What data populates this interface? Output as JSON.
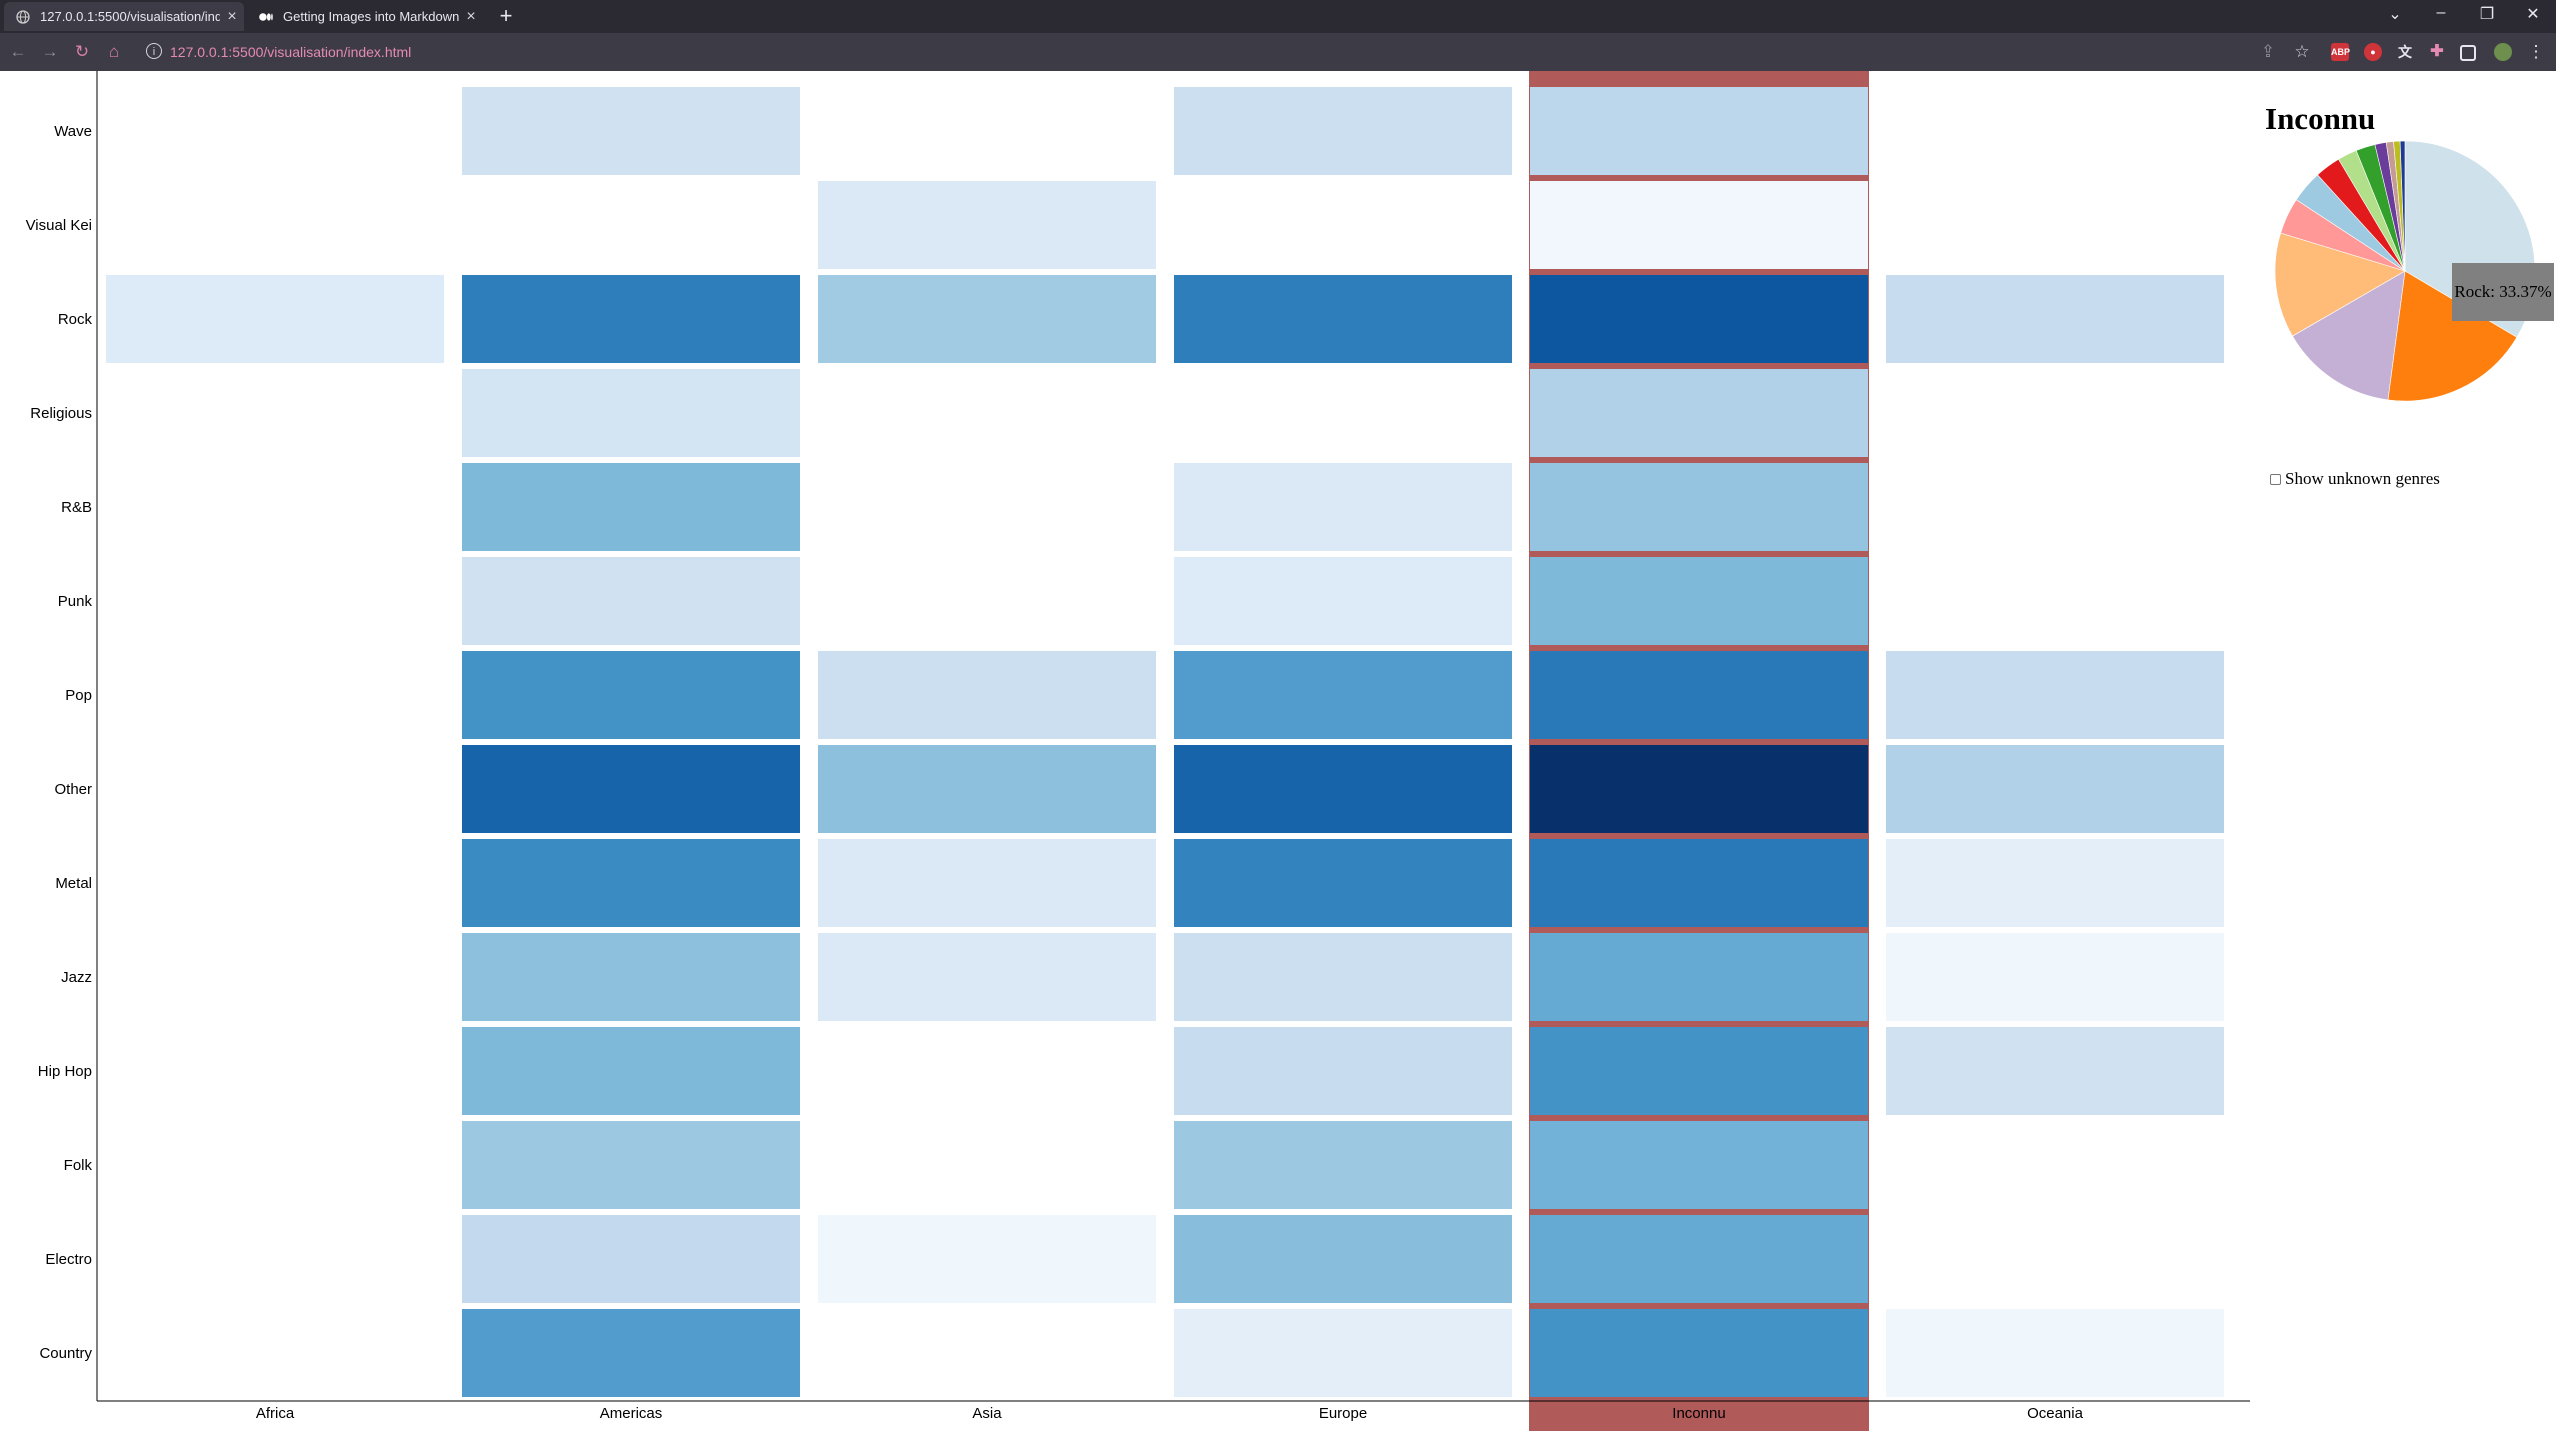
{
  "browser": {
    "tabs": [
      {
        "title": "127.0.0.1:5500/visualisation/index.html",
        "active": true,
        "icon": "globe-icon"
      },
      {
        "title": "Getting Images into Markdown Documents",
        "active": false,
        "icon": "medium-logo-icon"
      }
    ],
    "new_tab_label": "+",
    "url": "127.0.0.1:5500/visualisation/index.html"
  },
  "heatmap": {
    "columns": [
      "Africa",
      "Americas",
      "Asia",
      "Europe",
      "Inconnu",
      "Oceania"
    ],
    "rows": [
      "Wave",
      "Visual Kei",
      "Rock",
      "Religious",
      "R&B",
      "Punk",
      "Pop",
      "Other",
      "Metal",
      "Jazz",
      "Hip Hop",
      "Folk",
      "Electro",
      "Country"
    ],
    "selected_column": "Inconnu",
    "highlight_color": "#b05a5a",
    "cells": {
      "Africa": [
        null,
        null,
        0.13,
        null,
        null,
        null,
        null,
        null,
        null,
        null,
        null,
        null,
        null,
        null
      ],
      "Americas": [
        0.2,
        null,
        0.7,
        0.18,
        0.45,
        0.2,
        0.62,
        0.8,
        0.65,
        0.42,
        0.45,
        0.38,
        0.26,
        0.58
      ],
      "Asia": [
        null,
        0.14,
        0.37,
        null,
        null,
        null,
        0.22,
        0.42,
        0.14,
        0.14,
        null,
        null,
        0.04,
        null
      ],
      "Europe": [
        0.22,
        null,
        0.7,
        null,
        0.14,
        0.13,
        0.58,
        0.8,
        0.68,
        0.22,
        0.24,
        0.38,
        0.43,
        0.1
      ],
      "Inconnu": [
        0.28,
        0.03,
        0.85,
        0.32,
        0.4,
        0.45,
        0.72,
        1.0,
        0.72,
        0.52,
        0.62,
        0.48,
        0.52,
        0.62
      ],
      "Oceania": [
        null,
        null,
        0.24,
        null,
        null,
        null,
        0.24,
        0.32,
        0.1,
        0.04,
        0.2,
        null,
        null,
        0.04
      ]
    }
  },
  "pie": {
    "title": "Inconnu",
    "tooltip": "Rock: 33.37%",
    "slices": [
      {
        "label": "Rock",
        "percent": 33.37,
        "color": "#cfe1ea"
      },
      {
        "label": "",
        "percent": 18.5,
        "color": "#ff7f0e"
      },
      {
        "label": "",
        "percent": 14.5,
        "color": "#c5b0d5"
      },
      {
        "label": "",
        "percent": 13.0,
        "color": "#ffbb78"
      },
      {
        "label": "",
        "percent": 4.5,
        "color": "#ff9896"
      },
      {
        "label": "",
        "percent": 4.0,
        "color": "#9ecae1"
      },
      {
        "label": "",
        "percent": 3.2,
        "color": "#e31a1c"
      },
      {
        "label": "",
        "percent": 2.4,
        "color": "#b2df8a"
      },
      {
        "label": "",
        "percent": 2.4,
        "color": "#33a02c"
      },
      {
        "label": "",
        "percent": 1.4,
        "color": "#6a3d9a"
      },
      {
        "label": "",
        "percent": 0.9,
        "color": "#c49c94"
      },
      {
        "label": "",
        "percent": 0.8,
        "color": "#bcbd22"
      },
      {
        "label": "",
        "percent": 0.6,
        "color": "#1f3a93"
      }
    ]
  },
  "unknown_genres_label": "Show unknown genres",
  "unknown_genres_checked": false
}
